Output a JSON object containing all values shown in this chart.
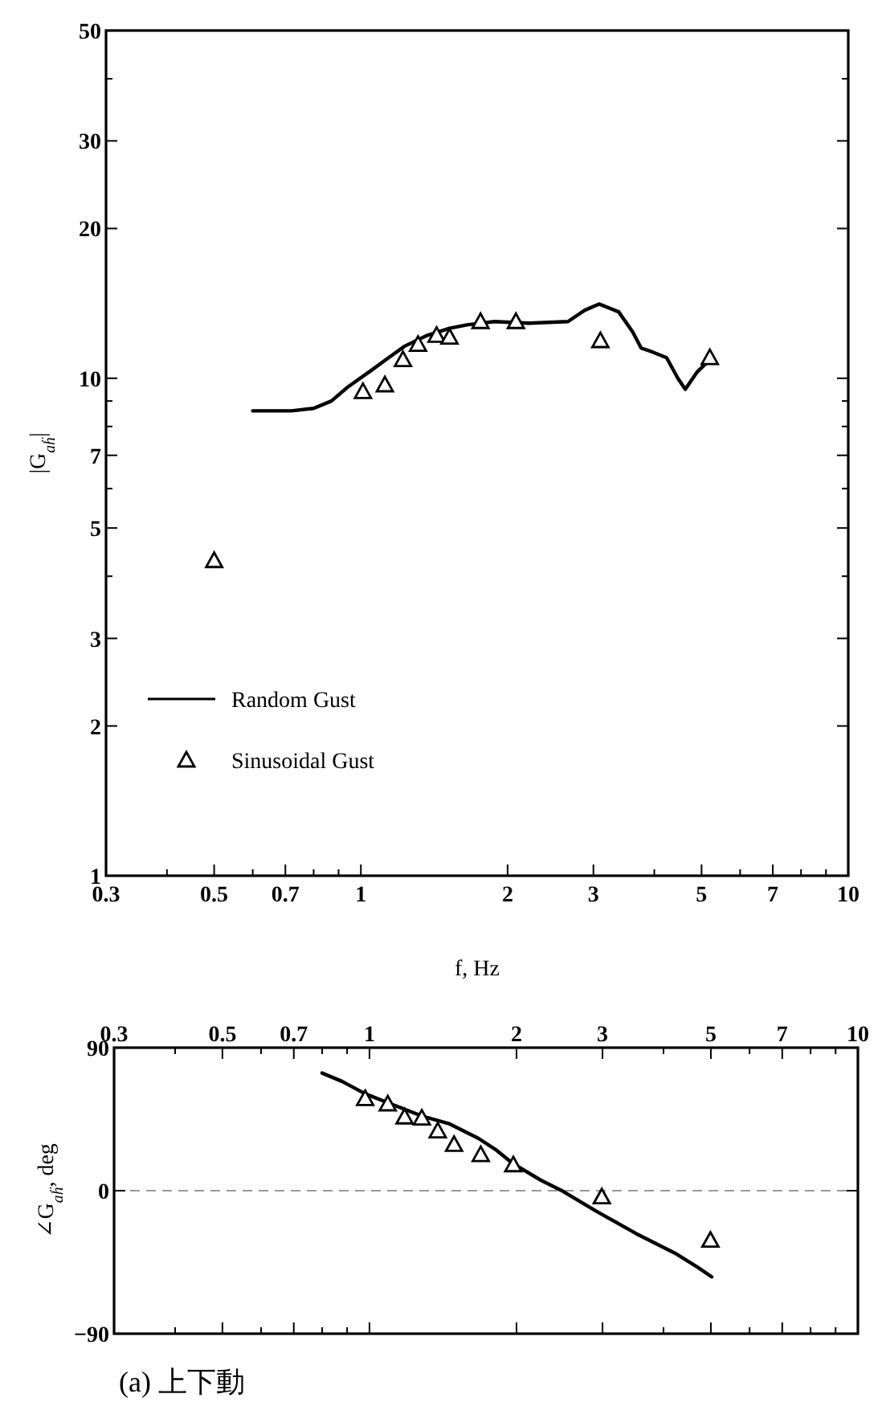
{
  "chart_data": [
    {
      "type": "line",
      "log": "xy",
      "xlim": [
        0.3,
        10
      ],
      "ylim": [
        1,
        50
      ],
      "xlabel": "f, Hz",
      "ylabel": "|G$_{aḧ}$|",
      "legend": "bottom left",
      "grid": false,
      "xticks": [
        0.3,
        {
          "value": 0.4,
          "label": null
        },
        0.5,
        {
          "value": 0.6,
          "label": null
        },
        0.7,
        {
          "value": 0.8,
          "label": null
        },
        {
          "value": 0.9,
          "label": null
        },
        1,
        2,
        3,
        {
          "value": 4,
          "label": null
        },
        5,
        {
          "value": 6,
          "label": null
        },
        7,
        {
          "value": 8,
          "label": null
        },
        {
          "value": 9,
          "label": null
        },
        10
      ],
      "yticks": [
        1,
        2,
        3,
        {
          "value": 4,
          "label": null
        },
        5,
        {
          "value": 6,
          "label": null
        },
        7,
        {
          "value": 8,
          "label": null
        },
        {
          "value": 9,
          "label": null
        },
        10,
        20,
        30,
        {
          "value": 40,
          "label": null
        },
        50
      ],
      "series": [
        {
          "name": "Random Gust",
          "type": "line",
          "color": "#000000",
          "marker": "none",
          "x": [
            0.6,
            0.72,
            0.8,
            0.87,
            0.94,
            1.04,
            1.14,
            1.23,
            1.37,
            1.52,
            1.65,
            1.88,
            2.21,
            2.66,
            2.88,
            3.08,
            3.38,
            3.61,
            3.76,
            3.96,
            4.24,
            4.47,
            4.63,
            4.9,
            5.1
          ],
          "values": [
            8.6,
            8.6,
            8.7,
            9.0,
            9.6,
            10.3,
            11.0,
            11.6,
            12.2,
            12.6,
            12.8,
            13.0,
            12.9,
            13.0,
            13.7,
            14.1,
            13.6,
            12.4,
            11.5,
            11.3,
            11.0,
            10.0,
            9.5,
            10.3,
            10.7
          ]
        },
        {
          "name": "Sinusoidal Gust",
          "type": "scatter",
          "color": "#000000",
          "marker": "triangle",
          "x": [
            0.5,
            1.01,
            1.12,
            1.22,
            1.31,
            1.43,
            1.52,
            1.76,
            2.08,
            3.1,
            5.2
          ],
          "values": [
            4.3,
            9.4,
            9.7,
            10.9,
            11.7,
            12.2,
            12.1,
            13.0,
            13.0,
            11.9,
            11.0
          ]
        }
      ]
    },
    {
      "type": "line",
      "log": "x",
      "xlim": [
        0.3,
        10
      ],
      "ylim": [
        -90,
        90
      ],
      "ylabel": "∠G$_{aḧ}$, deg",
      "grid": false,
      "xticks": [
        0.3,
        {
          "value": 0.4,
          "label": null
        },
        0.5,
        {
          "value": 0.6,
          "label": null
        },
        0.7,
        {
          "value": 0.8,
          "label": null
        },
        {
          "value": 0.9,
          "label": null
        },
        1,
        2,
        3,
        {
          "value": 4,
          "label": null
        },
        5,
        {
          "value": 6,
          "label": null
        },
        7,
        {
          "value": 8,
          "label": null
        },
        {
          "value": 9,
          "label": null
        },
        10
      ],
      "yticks": [
        {
          "value": -90,
          "label": "−90"
        },
        0,
        90
      ],
      "ref_lines": [
        {
          "axis": "y",
          "value": 0,
          "color": "#9a9a9a",
          "line_style": "dashed"
        }
      ],
      "annotations": [
        "(a) 上下動"
      ],
      "series": [
        {
          "type": "line",
          "color": "#000000",
          "marker": "none",
          "x": [
            0.8,
            0.88,
            0.98,
            1.12,
            1.28,
            1.46,
            1.67,
            1.81,
            1.96,
            2.24,
            2.49,
            2.91,
            3.51,
            4.22,
            4.7,
            5.02
          ],
          "values": [
            74,
            68.7,
            61,
            54,
            47,
            42,
            33,
            26,
            17.4,
            6.7,
            -0.4,
            -12.8,
            -26.9,
            -39.3,
            -48.2,
            -54.2
          ]
        },
        {
          "type": "scatter",
          "color": "#000000",
          "marker": "triangle",
          "x": [
            0.98,
            1.09,
            1.18,
            1.28,
            1.38,
            1.49,
            1.69,
            1.97,
            2.99,
            4.99
          ],
          "values": [
            58,
            54.6,
            46.4,
            45.7,
            37.6,
            29.1,
            22.7,
            16.3,
            -3.9,
            -31.2
          ]
        }
      ]
    }
  ]
}
